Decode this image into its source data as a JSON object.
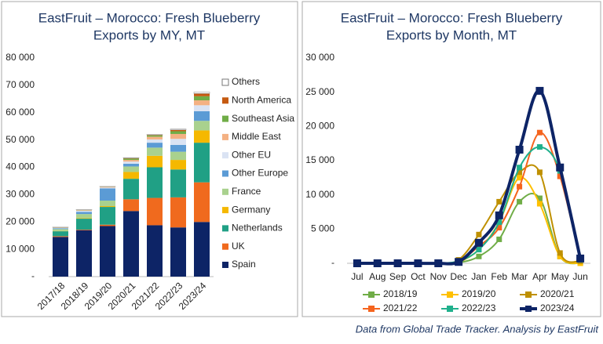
{
  "chart_data": [
    {
      "type": "stacked_bar",
      "title": [
        "EastFruit – Morocco: Fresh Blueberry",
        "Exports by MY, MT"
      ],
      "categories": [
        "2017/18",
        "2018/19",
        "2019/20",
        "2020/21",
        "2021/22",
        "2022/23",
        "2023/24"
      ],
      "series": [
        {
          "name": "Spain",
          "color": "#0d2466",
          "values": [
            14500,
            17000,
            18500,
            24000,
            18800,
            18000,
            20000
          ]
        },
        {
          "name": "UK",
          "color": "#f06a1e",
          "values": [
            300,
            200,
            500,
            4300,
            10000,
            11000,
            14500
          ]
        },
        {
          "name": "Netherlands",
          "color": "#20a085",
          "values": [
            1800,
            4000,
            6500,
            7500,
            11200,
            10200,
            14500
          ]
        },
        {
          "name": "Germany",
          "color": "#f5b800",
          "values": [
            100,
            200,
            300,
            2500,
            4200,
            3500,
            4500
          ]
        },
        {
          "name": "France",
          "color": "#a9d18e",
          "values": [
            700,
            1500,
            2000,
            2000,
            3000,
            3000,
            3500
          ]
        },
        {
          "name": "Other Europe",
          "color": "#5b9bd5",
          "values": [
            300,
            800,
            4500,
            1000,
            1800,
            2500,
            3500
          ]
        },
        {
          "name": "Other EU",
          "color": "#dae3f3",
          "values": [
            100,
            400,
            300,
            800,
            1200,
            2200,
            2200
          ]
        },
        {
          "name": "Middle East",
          "color": "#f4b183",
          "values": [
            100,
            200,
            200,
            600,
            1000,
            1800,
            1800
          ]
        },
        {
          "name": "Southeast Asia",
          "color": "#70ad47",
          "values": [
            100,
            100,
            100,
            500,
            500,
            1000,
            1500
          ]
        },
        {
          "name": "North America",
          "color": "#c55a11",
          "values": [
            50,
            50,
            50,
            200,
            200,
            500,
            1000
          ]
        },
        {
          "name": "Others",
          "color": "#ffffff",
          "values": [
            50,
            50,
            50,
            100,
            100,
            300,
            500
          ]
        }
      ],
      "ylim": [
        0,
        80000
      ],
      "yticks": [
        {
          "value": 0,
          "label": "-"
        },
        {
          "value": 10000,
          "label": "10 000"
        },
        {
          "value": 20000,
          "label": "20 000"
        },
        {
          "value": 30000,
          "label": "30 000"
        },
        {
          "value": 40000,
          "label": "40 000"
        },
        {
          "value": 50000,
          "label": "50 000"
        },
        {
          "value": 60000,
          "label": "60 000"
        },
        {
          "value": 70000,
          "label": "70 000"
        },
        {
          "value": 80000,
          "label": "80 000"
        }
      ],
      "legend": "right"
    },
    {
      "type": "line",
      "title": [
        "EastFruit – Morocco: Fresh Blueberry",
        "Exports by Month, MT"
      ],
      "categories": [
        "Jul",
        "Aug",
        "Sep",
        "Oct",
        "Nov",
        "Dec",
        "Jan",
        "Feb",
        "Mar",
        "Apr",
        "May",
        "Jun"
      ],
      "series": [
        {
          "name": "2018/19",
          "color": "#70ad47",
          "values": [
            0,
            0,
            0,
            0,
            0,
            100,
            1000,
            3500,
            9000,
            9500,
            1000,
            0
          ]
        },
        {
          "name": "2019/20",
          "color": "#ffc000",
          "values": [
            0,
            0,
            0,
            0,
            0,
            200,
            2000,
            6000,
            12500,
            8700,
            1000,
            0
          ]
        },
        {
          "name": "2020/21",
          "color": "#bf9000",
          "values": [
            0,
            0,
            0,
            0,
            0,
            500,
            4200,
            9000,
            13300,
            13300,
            1500,
            300
          ]
        },
        {
          "name": "2021/22",
          "color": "#f5641e",
          "values": [
            0,
            0,
            0,
            0,
            0,
            300,
            2500,
            5200,
            11200,
            19100,
            12700,
            500
          ]
        },
        {
          "name": "2022/23",
          "color": "#20b08c",
          "values": [
            0,
            0,
            0,
            0,
            0,
            300,
            2000,
            6000,
            14000,
            17000,
            13500,
            500
          ]
        },
        {
          "name": "2023/24",
          "color": "#0d2466",
          "values": [
            0,
            0,
            0,
            0,
            0,
            200,
            3000,
            7000,
            16600,
            25200,
            14000,
            700
          ]
        }
      ],
      "ylim": [
        0,
        30000
      ],
      "yticks": [
        {
          "value": 0,
          "label": "-"
        },
        {
          "value": 5000,
          "label": "5 000"
        },
        {
          "value": 10000,
          "label": "10 000"
        },
        {
          "value": 15000,
          "label": "15 000"
        },
        {
          "value": 20000,
          "label": "20 000"
        },
        {
          "value": 25000,
          "label": "25 000"
        },
        {
          "value": 30000,
          "label": "30 000"
        }
      ],
      "legend": "bottom"
    }
  ],
  "source": "Data from Global Trade Tracker. Analysis by EastFruit"
}
